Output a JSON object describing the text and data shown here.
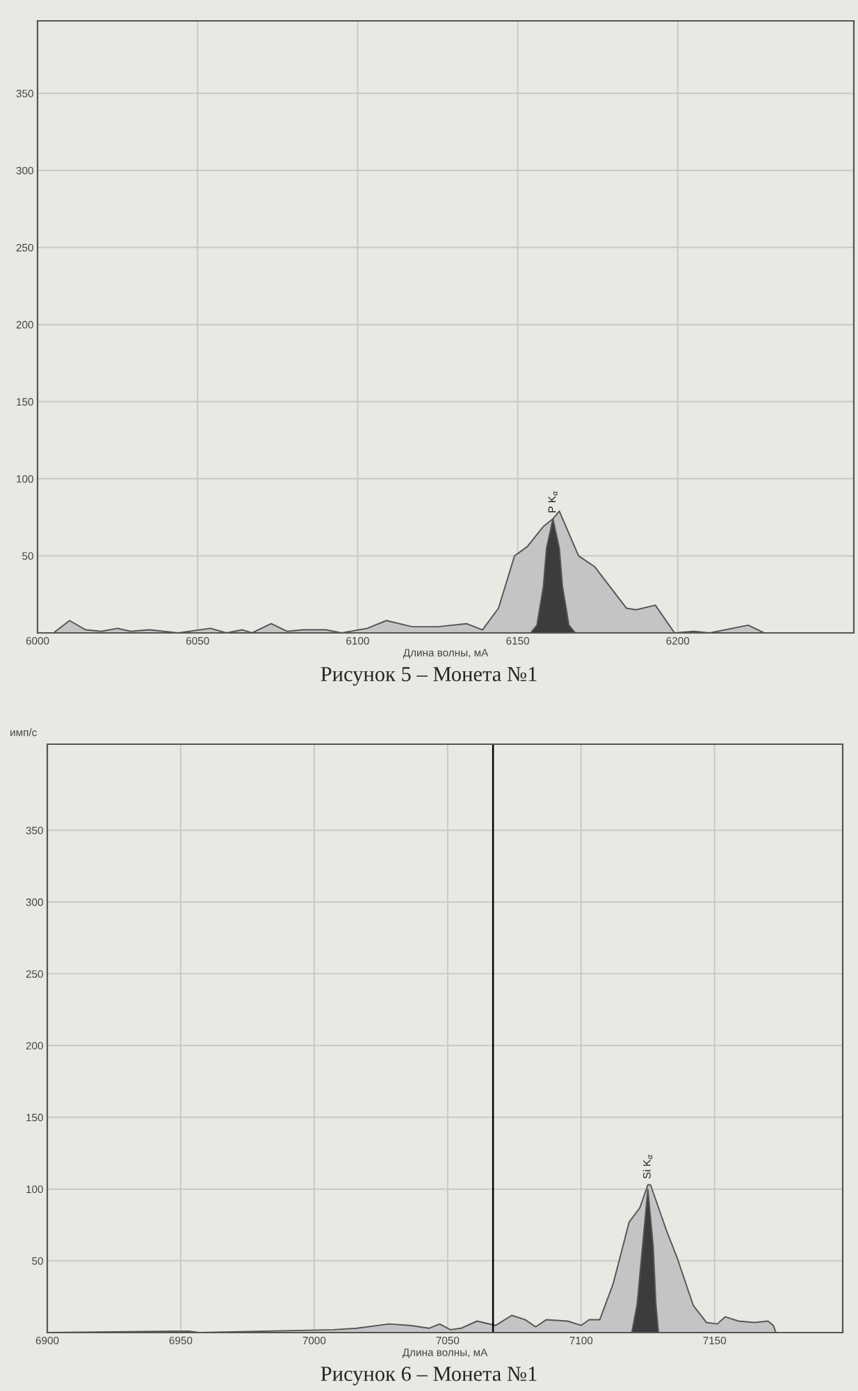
{
  "chart_data": [
    {
      "type": "area",
      "xlabel": "Длина волны, мА",
      "xlim": [
        6000,
        6255
      ],
      "ylim": [
        0,
        397
      ],
      "xticks": [
        6000,
        6050,
        6100,
        6150,
        6200
      ],
      "yticks": [
        50,
        100,
        150,
        200,
        250,
        300,
        350
      ],
      "grid": true,
      "series": [
        {
          "color": "#c4c4c4",
          "x": [
            6000,
            6005,
            6010,
            6015,
            6020,
            6025,
            6029,
            6035,
            6044,
            6054,
            6059,
            6064,
            6067,
            6073,
            6078,
            6083,
            6090,
            6095,
            6103,
            6109,
            6117,
            6125,
            6134,
            6139,
            6144,
            6149,
            6153,
            6158,
            6161,
            6163,
            6169,
            6174,
            6184,
            6187,
            6193,
            6199,
            6205,
            6210,
            6222,
            6227,
            6255
          ],
          "values": [
            0,
            0,
            8,
            2,
            1,
            3,
            1,
            2,
            0,
            3,
            0,
            2,
            0,
            6,
            1,
            2,
            2,
            0,
            3,
            8,
            4,
            4,
            6,
            2,
            16,
            50,
            56,
            69,
            74,
            79,
            50,
            43,
            16,
            15,
            18,
            0,
            1,
            0,
            5,
            0,
            0
          ]
        },
        {
          "color": "#3c3c3c",
          "x": [
            6154,
            6156,
            6158,
            6159,
            6161,
            6163,
            6164,
            6166,
            6168
          ],
          "values": [
            0,
            5,
            30,
            55,
            74,
            55,
            30,
            5,
            0
          ]
        }
      ],
      "annotations": [
        {
          "text": "P K$_{α}$",
          "x": 6161,
          "y": 74
        },
        "Рисунок 5 – Монета №1"
      ]
    },
    {
      "type": "area",
      "xlabel": "Длина волны, мА",
      "ylabel": "имп/с",
      "xlim": [
        6900,
        7198
      ],
      "ylim": [
        0,
        410
      ],
      "xticks": [
        6900,
        6950,
        7000,
        7050,
        7100,
        7150
      ],
      "yticks": [
        50,
        100,
        150,
        200,
        250,
        300,
        350
      ],
      "grid": true,
      "series": [
        {
          "color": "#c4c4c4",
          "x": [
            6900,
            6953,
            6957,
            7007,
            7016,
            7028,
            7036,
            7043,
            7047,
            7051,
            7055,
            7061,
            7068,
            7074,
            7079,
            7083,
            7087,
            7095,
            7100,
            7103,
            7107,
            7112,
            7118,
            7122,
            7125,
            7126,
            7132,
            7136,
            7142,
            7147,
            7151,
            7154,
            7159,
            7165,
            7170,
            7172,
            7173
          ],
          "values": [
            0,
            1,
            0,
            2,
            3,
            6,
            5,
            3,
            6,
            2,
            3,
            8,
            5,
            12,
            9,
            4,
            9,
            8,
            5,
            9,
            9,
            34,
            77,
            87,
            103,
            103,
            71,
            52,
            19,
            7,
            6,
            11,
            8,
            7,
            8,
            5,
            0
          ]
        },
        {
          "color": "#3c3c3c",
          "x": [
            7119,
            7121,
            7123,
            7125,
            7127,
            7128,
            7129
          ],
          "values": [
            0,
            20,
            60,
            100,
            60,
            20,
            0
          ]
        }
      ],
      "ref_lines": [
        {
          "axis": "x",
          "value": 7067,
          "color": "#000000"
        }
      ],
      "annotations": [
        {
          "text": "Si K$_{α}$",
          "x": 7125,
          "y": 103
        },
        "Рисунок 6 – Монета №1"
      ]
    }
  ]
}
